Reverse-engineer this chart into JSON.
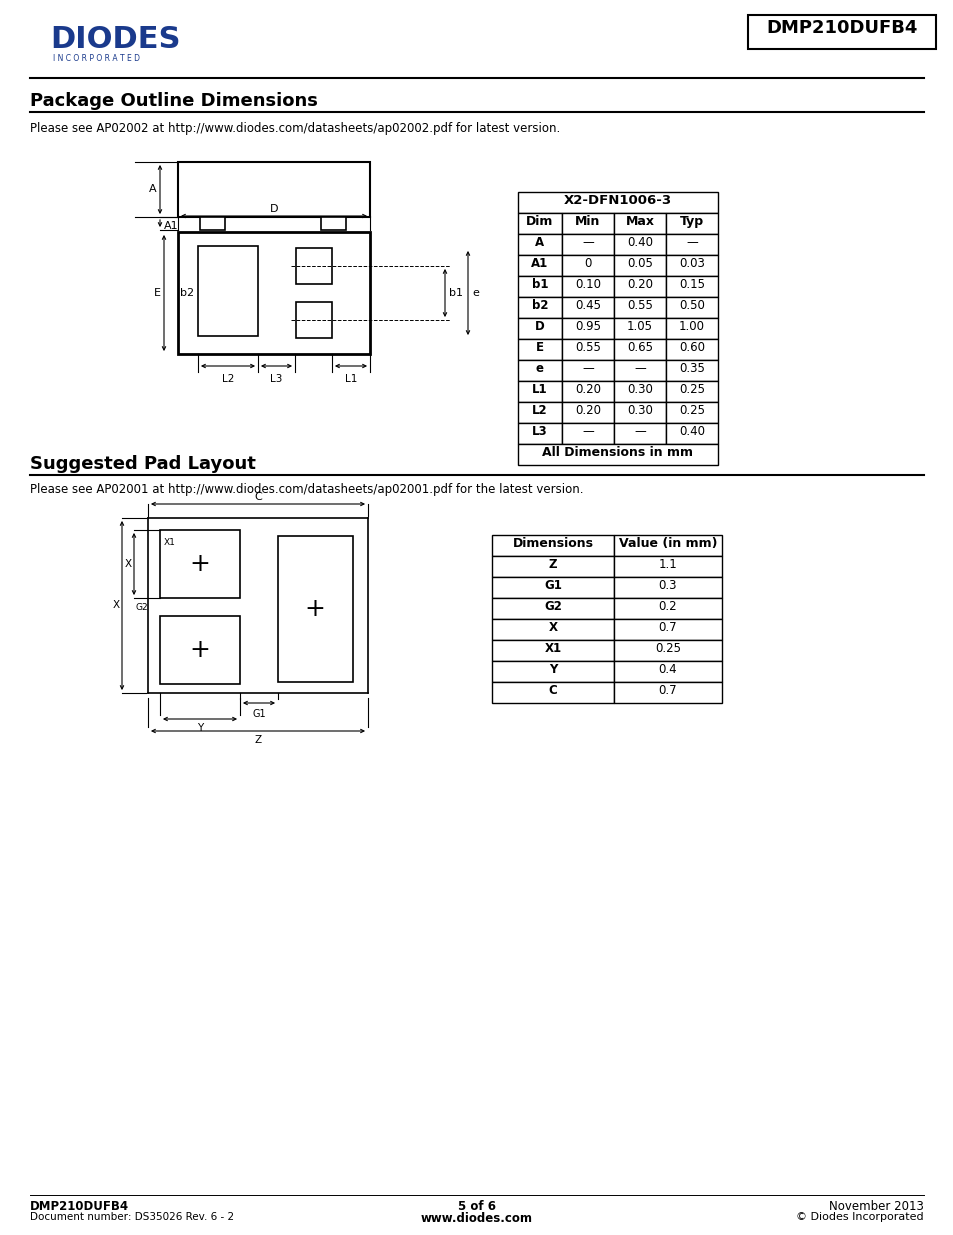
{
  "page_title": "DMP210DUFB4",
  "section1_title": "Package Outline Dimensions",
  "section1_note": "Please see AP02002 at http://www.diodes.com/datasheets/ap02002.pdf for latest version.",
  "section2_title": "Suggested Pad Layout",
  "section2_note": "Please see AP02001 at http://www.diodes.com/datasheets/ap02001.pdf for the latest version.",
  "table1_title": "X2-DFN1006-3",
  "table1_headers": [
    "Dim",
    "Min",
    "Max",
    "Typ"
  ],
  "table1_rows": [
    [
      "A",
      "—",
      "0.40",
      "—"
    ],
    [
      "A1",
      "0",
      "0.05",
      "0.03"
    ],
    [
      "b1",
      "0.10",
      "0.20",
      "0.15"
    ],
    [
      "b2",
      "0.45",
      "0.55",
      "0.50"
    ],
    [
      "D",
      "0.95",
      "1.05",
      "1.00"
    ],
    [
      "E",
      "0.55",
      "0.65",
      "0.60"
    ],
    [
      "e",
      "—",
      "—",
      "0.35"
    ],
    [
      "L1",
      "0.20",
      "0.30",
      "0.25"
    ],
    [
      "L2",
      "0.20",
      "0.30",
      "0.25"
    ],
    [
      "L3",
      "—",
      "—",
      "0.40"
    ]
  ],
  "table1_footer": "All Dimensions in mm",
  "table2_headers": [
    "Dimensions",
    "Value (in mm)"
  ],
  "table2_rows": [
    [
      "Z",
      "1.1"
    ],
    [
      "G1",
      "0.3"
    ],
    [
      "G2",
      "0.2"
    ],
    [
      "X",
      "0.7"
    ],
    [
      "X1",
      "0.25"
    ],
    [
      "Y",
      "0.4"
    ],
    [
      "C",
      "0.7"
    ]
  ],
  "footer_left1": "DMP210DUFB4",
  "footer_left2": "Document number: DS35026 Rev. 6 - 2",
  "footer_center1": "5 of 6",
  "footer_center2": "www.diodes.com",
  "footer_right1": "November 2013",
  "footer_right2": "© Diodes Incorporated",
  "bg_color": "#ffffff",
  "text_color": "#000000",
  "diodes_logo_color": "#1a3a8c"
}
